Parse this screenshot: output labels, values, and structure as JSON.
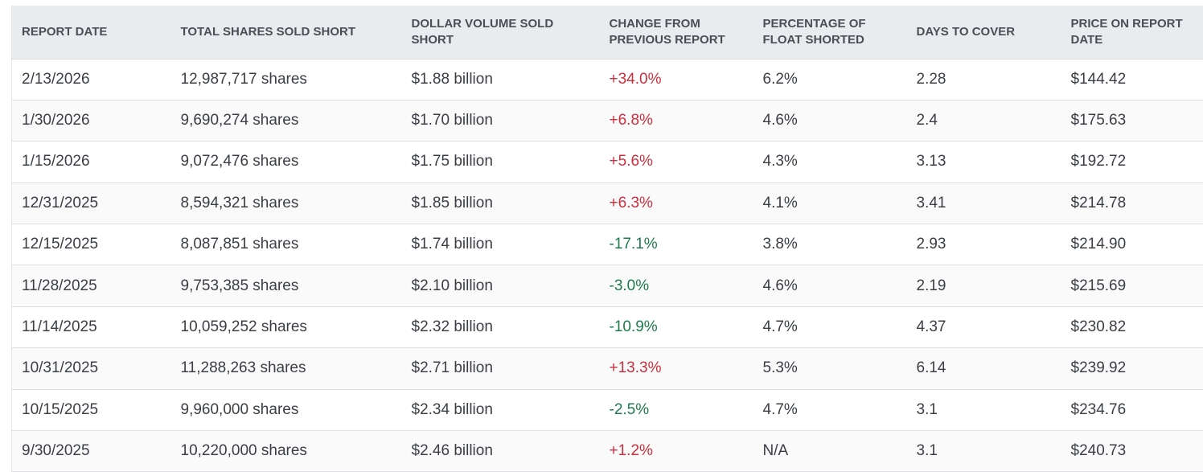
{
  "table": {
    "headers": [
      "REPORT DATE",
      "TOTAL SHARES SOLD SHORT",
      "DOLLAR VOLUME SOLD SHORT",
      "CHANGE FROM PREVIOUS REPORT",
      "PERCENTAGE OF FLOAT SHORTED",
      "DAYS TO COVER",
      "PRICE ON REPORT DATE"
    ],
    "rows": [
      [
        "2/13/2026",
        "12,987,717 shares",
        "$1.88 billion",
        "+34.0%",
        "6.2%",
        "2.28",
        "$144.42"
      ],
      [
        "1/30/2026",
        "9,690,274 shares",
        "$1.70 billion",
        "+6.8%",
        "4.6%",
        "2.4",
        "$175.63"
      ],
      [
        "1/15/2026",
        "9,072,476 shares",
        "$1.75 billion",
        "+5.6%",
        "4.3%",
        "3.13",
        "$192.72"
      ],
      [
        "12/31/2025",
        "8,594,321 shares",
        "$1.85 billion",
        "+6.3%",
        "4.1%",
        "3.41",
        "$214.78"
      ],
      [
        "12/15/2025",
        "8,087,851 shares",
        "$1.74 billion",
        "-17.1%",
        "3.8%",
        "2.93",
        "$214.90"
      ],
      [
        "11/28/2025",
        "9,753,385 shares",
        "$2.10 billion",
        "-3.0%",
        "4.6%",
        "2.19",
        "$215.69"
      ],
      [
        "11/14/2025",
        "10,059,252 shares",
        "$2.32 billion",
        "-10.9%",
        "4.7%",
        "4.37",
        "$230.82"
      ],
      [
        "10/31/2025",
        "11,288,263 shares",
        "$2.71 billion",
        "+13.3%",
        "5.3%",
        "6.14",
        "$239.92"
      ],
      [
        "10/15/2025",
        "9,960,000 shares",
        "$2.34 billion",
        "-2.5%",
        "4.7%",
        "3.1",
        "$234.76"
      ],
      [
        "9/30/2025",
        "10,220,000 shares",
        "$2.46 billion",
        "+1.2%",
        "N/A",
        "3.1",
        "$240.73"
      ]
    ]
  }
}
